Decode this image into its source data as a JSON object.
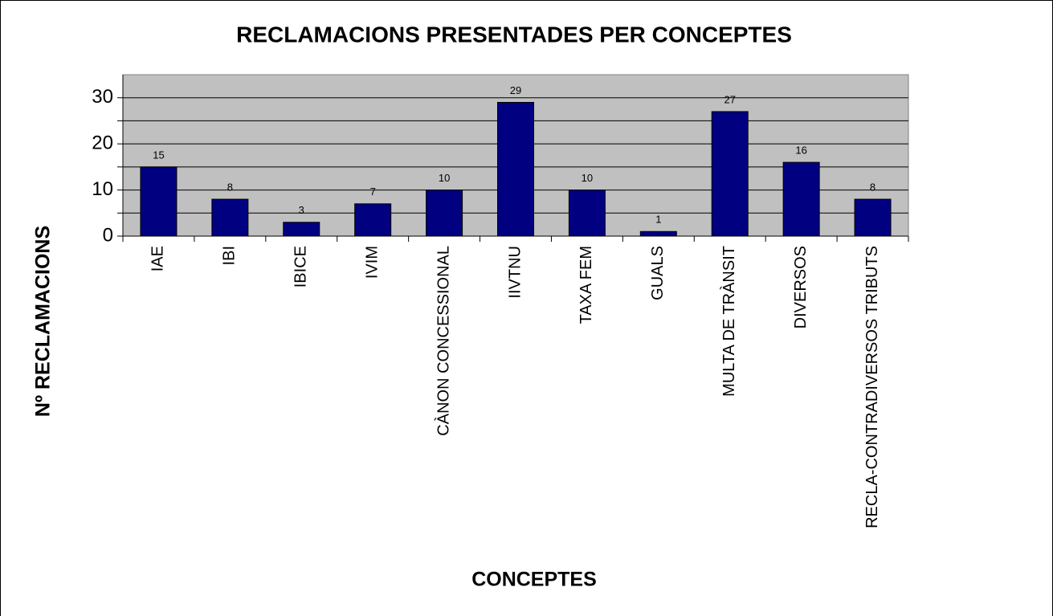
{
  "chart_data": {
    "type": "bar",
    "title": "RECLAMACIONS PRESENTADES PER CONCEPTES",
    "x_label": "CONCEPTES",
    "y_label": "Nº RECLAMACIONS",
    "categories": [
      "IAE",
      "IBI",
      "IBICE",
      "IVIM",
      "CÀNON CONCESSIONAL",
      "IIVTNU",
      "TAXA FEM",
      "GUALS",
      "MULTA DE TRÀNSIT",
      "DIVERSOS",
      "RECLA-CONTRADIVERSOS TRIBUTS"
    ],
    "values": [
      15,
      8,
      3,
      7,
      10,
      29,
      10,
      1,
      27,
      16,
      8
    ],
    "color": "#000080",
    "ylim": [
      0,
      35
    ],
    "yticks": [
      0,
      10,
      20,
      30
    ],
    "minor_yticks": [
      5,
      15,
      25
    ],
    "grid": true,
    "plot_background": "#c0c0c0"
  }
}
